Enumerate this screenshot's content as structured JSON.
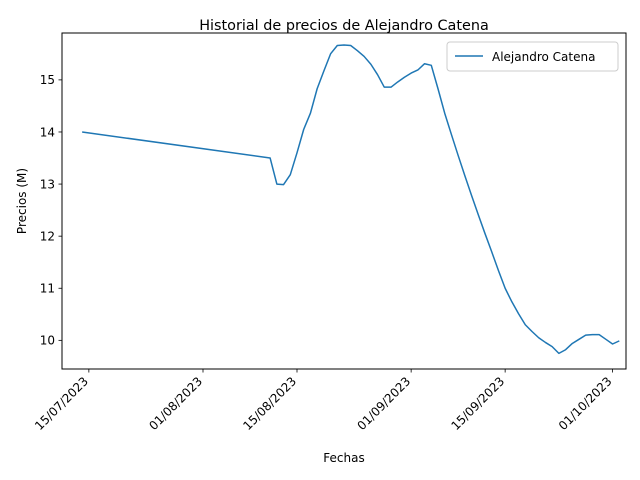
{
  "chart_data": {
    "type": "line",
    "title": "Historial de precios de Alejandro Catena",
    "xlabel": "Fechas",
    "ylabel": "Precios (M)",
    "x_ticks": [
      "2023-07-15",
      "2023-08-01",
      "2023-08-15",
      "2023-09-01",
      "2023-09-15",
      "2023-10-01"
    ],
    "x_tick_labels": [
      "15/07/2023",
      "01/08/2023",
      "15/08/2023",
      "01/09/2023",
      "15/09/2023",
      "01/10/2023"
    ],
    "y_ticks": [
      10,
      11,
      12,
      13,
      14,
      15
    ],
    "y_tick_labels": [
      "10",
      "11",
      "12",
      "13",
      "14",
      "15"
    ],
    "xlim": [
      "2023-07-11",
      "2023-10-03"
    ],
    "ylim": [
      9.45,
      15.9
    ],
    "grid": false,
    "legend_position": "upper-right",
    "series": [
      {
        "name": "Alejandro Catena",
        "color": "#1f77b4",
        "x": [
          "2023-07-14",
          "2023-08-11",
          "2023-08-12",
          "2023-08-13",
          "2023-08-14",
          "2023-08-15",
          "2023-08-16",
          "2023-08-17",
          "2023-08-18",
          "2023-08-19",
          "2023-08-20",
          "2023-08-21",
          "2023-08-22",
          "2023-08-23",
          "2023-08-24",
          "2023-08-25",
          "2023-08-26",
          "2023-08-27",
          "2023-08-28",
          "2023-08-29",
          "2023-08-30",
          "2023-08-31",
          "2023-09-01",
          "2023-09-02",
          "2023-09-03",
          "2023-09-04",
          "2023-09-05",
          "2023-09-06",
          "2023-09-07",
          "2023-09-08",
          "2023-09-09",
          "2023-09-10",
          "2023-09-11",
          "2023-09-12",
          "2023-09-13",
          "2023-09-14",
          "2023-09-15",
          "2023-09-16",
          "2023-09-17",
          "2023-09-18",
          "2023-09-19",
          "2023-09-20",
          "2023-09-21",
          "2023-09-22",
          "2023-09-23",
          "2023-09-24",
          "2023-09-25",
          "2023-09-26",
          "2023-09-27",
          "2023-09-28",
          "2023-09-29",
          "2023-09-30",
          "2023-10-01",
          "2023-10-02"
        ],
        "values": [
          14.0,
          13.5,
          13.0,
          12.99,
          13.18,
          13.6,
          14.05,
          14.36,
          14.83,
          15.17,
          15.5,
          15.66,
          15.67,
          15.66,
          15.56,
          15.45,
          15.3,
          15.1,
          14.86,
          14.86,
          14.96,
          15.05,
          15.13,
          15.19,
          15.31,
          15.28,
          14.83,
          14.36,
          13.95,
          13.55,
          13.16,
          12.78,
          12.41,
          12.05,
          11.7,
          11.34,
          11.0,
          10.74,
          10.51,
          10.3,
          10.17,
          10.05,
          9.96,
          9.88,
          9.75,
          9.82,
          9.94,
          10.02,
          10.1,
          10.11,
          10.11,
          10.02,
          9.93,
          9.99
        ]
      }
    ]
  }
}
